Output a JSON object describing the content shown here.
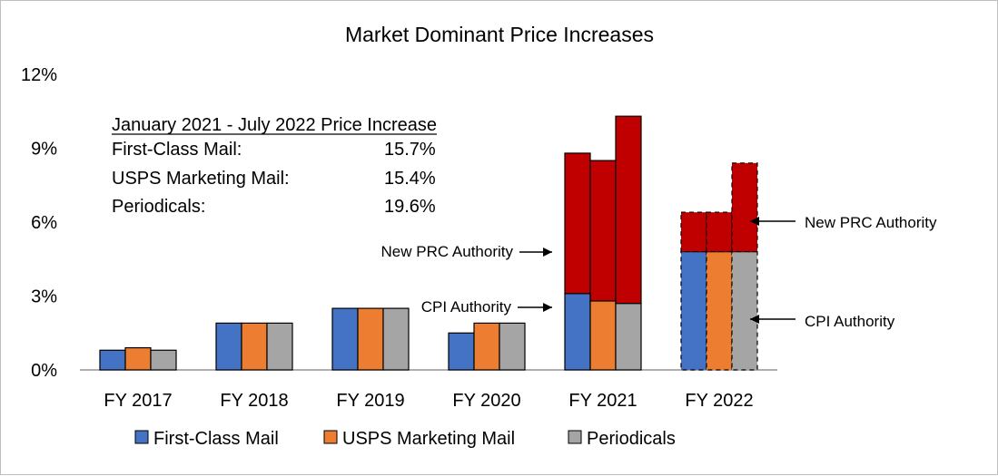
{
  "chart_data": {
    "type": "bar",
    "title": "Market Dominant Price Increases",
    "xlabel": "",
    "ylabel": "",
    "ylim": [
      0,
      12
    ],
    "yticks": [
      "0%",
      "3%",
      "6%",
      "9%",
      "12%"
    ],
    "ytick_values": [
      0,
      3,
      6,
      9,
      12
    ],
    "grid": false,
    "legend_position": "bottom",
    "categories": [
      "FY 2017",
      "FY 2018",
      "FY 2019",
      "FY 2020",
      "FY 2021",
      "FY 2022"
    ],
    "series": [
      {
        "name": "First-Class Mail",
        "color": "#4472c4",
        "values": [
          0.8,
          1.9,
          2.5,
          1.5,
          3.1,
          4.8
        ]
      },
      {
        "name": "USPS Marketing Mail",
        "color": "#ed7d31",
        "values": [
          0.9,
          1.9,
          2.5,
          1.9,
          2.8,
          4.8
        ]
      },
      {
        "name": "Periodicals",
        "color": "#a5a5a5",
        "values": [
          0.8,
          1.9,
          2.5,
          1.9,
          2.7,
          4.8
        ]
      }
    ],
    "stack_layer": {
      "color": "#c00000",
      "applies_to": [
        "FY 2021",
        "FY 2022"
      ],
      "values": {
        "FY 2021": [
          5.7,
          5.7,
          7.6
        ],
        "FY 2022": [
          1.6,
          1.6,
          3.6
        ]
      },
      "dashed_outline": [
        "FY 2022"
      ]
    },
    "annotations": {
      "new_prc": "New PRC Authority",
      "cpi": "CPI Authority"
    },
    "textbox": {
      "heading": "January  2021 - July 2022 Price Increase",
      "rows": [
        {
          "label": "First-Class Mail:",
          "value": "15.7%"
        },
        {
          "label": "USPS Marketing Mail:",
          "value": "15.4%"
        },
        {
          "label": "Periodicals:",
          "value": "19.6%"
        }
      ]
    }
  }
}
